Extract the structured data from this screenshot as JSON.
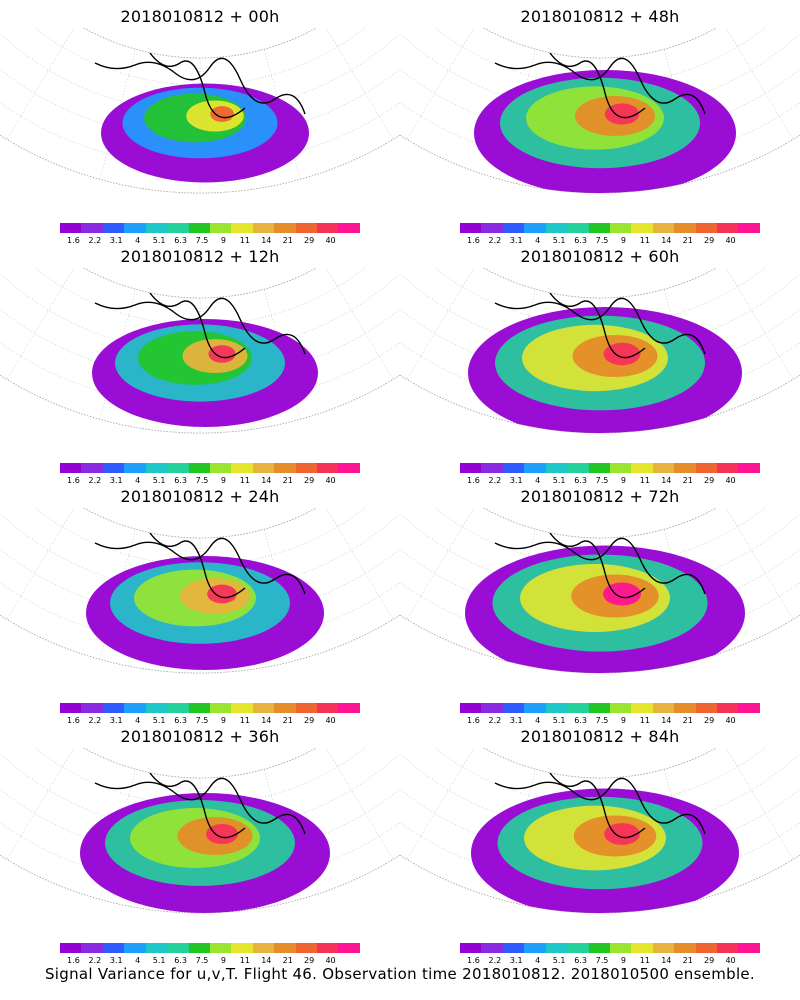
{
  "panels": [
    {
      "title": "2018010812 + 00h",
      "intensity": 0.15
    },
    {
      "title": "2018010812 + 48h",
      "intensity": 0.6
    },
    {
      "title": "2018010812 + 12h",
      "intensity": 0.3
    },
    {
      "title": "2018010812 + 60h",
      "intensity": 0.7
    },
    {
      "title": "2018010812 + 24h",
      "intensity": 0.4
    },
    {
      "title": "2018010812 + 72h",
      "intensity": 0.75
    },
    {
      "title": "2018010812 + 36h",
      "intensity": 0.5
    },
    {
      "title": "2018010812 + 84h",
      "intensity": 0.65
    }
  ],
  "colorbar": {
    "colors": [
      "#9400d3",
      "#8a2be2",
      "#2e5cff",
      "#1ea0ff",
      "#1ec8c8",
      "#22d29a",
      "#22c622",
      "#9ae62e",
      "#e6e62e",
      "#e6b43c",
      "#e68c28",
      "#f06432",
      "#f5325a",
      "#ff1493"
    ],
    "labels": [
      "1.6",
      "2.2",
      "3.1",
      "4",
      "5.1",
      "6.3",
      "7.5",
      "9",
      "11",
      "14",
      "21",
      "29",
      "40"
    ]
  },
  "caption": "Signal Variance for u,v,T. Flight 46. Observation time 2018010812. 2018010500 ensemble."
}
